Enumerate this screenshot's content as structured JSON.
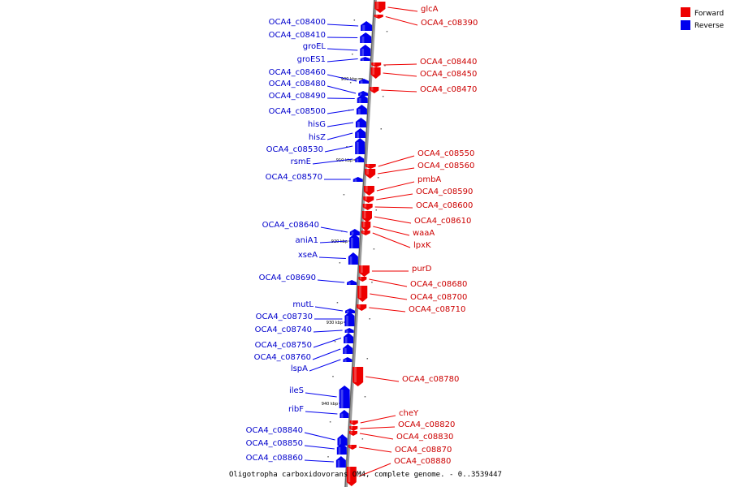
{
  "caption": "Oligotropha carboxidovorans OM4, complete genome. - 0..3539447",
  "legend": [
    {
      "label": "Forward",
      "color": "#ee0000"
    },
    {
      "label": "Reverse",
      "color": "#0000ee"
    }
  ],
  "colors": {
    "forward": "#ee0000",
    "reverse": "#0000ee",
    "axis": "#888888"
  },
  "ticks": [
    "900 kbp",
    "910 kbp",
    "920 kbp",
    "930 kbp",
    "940 kbp"
  ],
  "genes": [
    {
      "name": "glcA",
      "strand": "forward"
    },
    {
      "name": "OCA4_c08390",
      "strand": "forward"
    },
    {
      "name": "OCA4_c08400",
      "strand": "reverse"
    },
    {
      "name": "OCA4_c08410",
      "strand": "reverse"
    },
    {
      "name": "groEL",
      "strand": "reverse"
    },
    {
      "name": "groES1",
      "strand": "reverse"
    },
    {
      "name": "OCA4_c08440",
      "strand": "forward"
    },
    {
      "name": "OCA4_c08450",
      "strand": "forward"
    },
    {
      "name": "OCA4_c08460",
      "strand": "reverse"
    },
    {
      "name": "OCA4_c08480",
      "strand": "reverse"
    },
    {
      "name": "OCA4_c08470",
      "strand": "forward"
    },
    {
      "name": "OCA4_c08490",
      "strand": "reverse"
    },
    {
      "name": "OCA4_c08500",
      "strand": "reverse"
    },
    {
      "name": "hisG",
      "strand": "reverse"
    },
    {
      "name": "hisZ",
      "strand": "reverse"
    },
    {
      "name": "OCA4_c08530",
      "strand": "reverse"
    },
    {
      "name": "OCA4_c08550",
      "strand": "forward"
    },
    {
      "name": "rsmE",
      "strand": "reverse"
    },
    {
      "name": "OCA4_c08560",
      "strand": "forward"
    },
    {
      "name": "OCA4_c08570",
      "strand": "reverse"
    },
    {
      "name": "pmbA",
      "strand": "forward"
    },
    {
      "name": "OCA4_c08590",
      "strand": "forward"
    },
    {
      "name": "OCA4_c08600",
      "strand": "forward"
    },
    {
      "name": "OCA4_c08610",
      "strand": "forward"
    },
    {
      "name": "OCA4_c08640",
      "strand": "reverse"
    },
    {
      "name": "waaA",
      "strand": "forward"
    },
    {
      "name": "aniA1",
      "strand": "reverse"
    },
    {
      "name": "lpxK",
      "strand": "forward"
    },
    {
      "name": "xseA",
      "strand": "reverse"
    },
    {
      "name": "purD",
      "strand": "forward"
    },
    {
      "name": "OCA4_c08690",
      "strand": "reverse"
    },
    {
      "name": "OCA4_c08680",
      "strand": "forward"
    },
    {
      "name": "OCA4_c08700",
      "strand": "forward"
    },
    {
      "name": "mutL",
      "strand": "reverse"
    },
    {
      "name": "OCA4_c08710",
      "strand": "forward"
    },
    {
      "name": "OCA4_c08730",
      "strand": "reverse"
    },
    {
      "name": "OCA4_c08740",
      "strand": "reverse"
    },
    {
      "name": "OCA4_c08750",
      "strand": "reverse"
    },
    {
      "name": "OCA4_c08760",
      "strand": "reverse"
    },
    {
      "name": "lspA",
      "strand": "reverse"
    },
    {
      "name": "OCA4_c08780",
      "strand": "forward"
    },
    {
      "name": "ileS",
      "strand": "reverse"
    },
    {
      "name": "ribF",
      "strand": "reverse"
    },
    {
      "name": "cheY",
      "strand": "forward"
    },
    {
      "name": "OCA4_c08820",
      "strand": "forward"
    },
    {
      "name": "OCA4_c08840",
      "strand": "reverse"
    },
    {
      "name": "OCA4_c08830",
      "strand": "forward"
    },
    {
      "name": "OCA4_c08850",
      "strand": "reverse"
    },
    {
      "name": "OCA4_c08870",
      "strand": "forward"
    },
    {
      "name": "OCA4_c08860",
      "strand": "reverse"
    },
    {
      "name": "OCA4_c08880",
      "strand": "forward"
    }
  ]
}
